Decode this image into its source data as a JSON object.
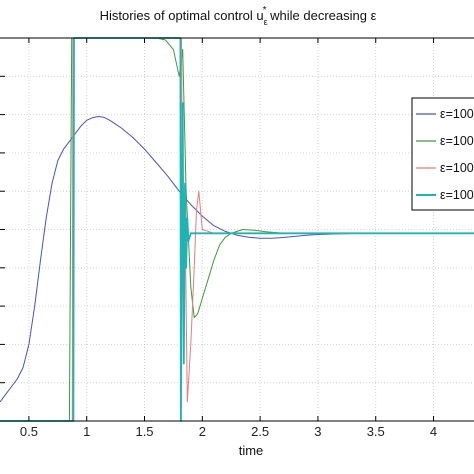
{
  "chart_data": {
    "type": "line",
    "title_parts": [
      "Histories of optimal control u",
      "ε",
      "*",
      " while decreasing ε"
    ],
    "xlabel": "time",
    "ylabel": "",
    "xlim": [
      0.25,
      4.35
    ],
    "ylim": [
      0,
      1
    ],
    "x_ticks": [
      0.5,
      1,
      1.5,
      2,
      2.5,
      3,
      3.5,
      4
    ],
    "x_tick_labels": [
      "0.5",
      "1",
      "1.5",
      "2",
      "2.5",
      "3",
      "3.5",
      "4"
    ],
    "grid": true,
    "legend_position": "right",
    "colors": {
      "axis": "#000000",
      "grid": "#c8c8c8"
    },
    "series": [
      {
        "name": "ε=100",
        "color": "#5050c0",
        "x": [
          0.25,
          0.3,
          0.35,
          0.4,
          0.45,
          0.5,
          0.55,
          0.6,
          0.65,
          0.7,
          0.75,
          0.8,
          0.85,
          0.9,
          0.95,
          1.0,
          1.05,
          1.1,
          1.15,
          1.2,
          1.3,
          1.4,
          1.5,
          1.6,
          1.7,
          1.8,
          1.9,
          2.0,
          2.1,
          2.2,
          2.3,
          2.4,
          2.5,
          2.6,
          2.7,
          2.8,
          2.9,
          3.0,
          3.2,
          3.4,
          3.6,
          3.8,
          4.0,
          4.2,
          4.35
        ],
        "y": [
          0.05,
          0.07,
          0.09,
          0.11,
          0.14,
          0.2,
          0.3,
          0.42,
          0.53,
          0.62,
          0.68,
          0.71,
          0.73,
          0.75,
          0.77,
          0.785,
          0.792,
          0.795,
          0.793,
          0.785,
          0.765,
          0.74,
          0.71,
          0.675,
          0.64,
          0.6,
          0.565,
          0.535,
          0.51,
          0.495,
          0.485,
          0.48,
          0.477,
          0.477,
          0.479,
          0.482,
          0.485,
          0.487,
          0.489,
          0.49,
          0.49,
          0.49,
          0.49,
          0.49,
          0.49
        ]
      },
      {
        "name": "ε=100",
        "color": "#3e9a3e",
        "x": [
          0.25,
          0.85,
          0.87,
          0.9,
          1.6,
          1.68,
          1.75,
          1.8,
          1.83,
          1.86,
          1.9,
          1.93,
          1.96,
          2.0,
          2.05,
          2.1,
          2.15,
          2.2,
          2.25,
          2.3,
          2.35,
          2.45,
          2.55,
          2.7,
          2.9,
          3.2,
          3.6,
          4.0,
          4.35
        ],
        "y": [
          0.0,
          0.0,
          1.0,
          1.0,
          1.0,
          0.995,
          0.97,
          0.9,
          0.97,
          0.6,
          0.35,
          0.27,
          0.28,
          0.32,
          0.37,
          0.42,
          0.46,
          0.48,
          0.49,
          0.495,
          0.5,
          0.498,
          0.494,
          0.49,
          0.49,
          0.49,
          0.49,
          0.49,
          0.49
        ]
      },
      {
        "name": "ε=100",
        "color": "#e08080",
        "x": [
          0.25,
          0.875,
          0.88,
          1.82,
          1.83,
          1.85,
          1.87,
          1.9,
          1.93,
          1.95,
          1.97,
          2.0,
          2.1,
          2.3,
          2.6,
          3.0,
          3.5,
          4.0,
          4.35
        ],
        "y": [
          0.0,
          0.0,
          1.0,
          1.0,
          0.45,
          0.55,
          0.05,
          0.2,
          0.4,
          0.55,
          0.6,
          0.5,
          0.49,
          0.49,
          0.49,
          0.49,
          0.49,
          0.49,
          0.49
        ]
      },
      {
        "name": "ε=100",
        "color": "#1fb3b3",
        "x": [
          0.25,
          0.885,
          0.89,
          1.81,
          1.815,
          1.83,
          1.84,
          1.85,
          1.86,
          1.87,
          1.88,
          1.9,
          2.0,
          2.5,
          3.0,
          3.5,
          4.0,
          4.35
        ],
        "y": [
          0.0,
          0.0,
          1.0,
          1.0,
          0.0,
          0.83,
          0.15,
          0.62,
          0.4,
          0.53,
          0.47,
          0.49,
          0.49,
          0.49,
          0.49,
          0.49,
          0.49,
          0.49
        ]
      }
    ]
  }
}
